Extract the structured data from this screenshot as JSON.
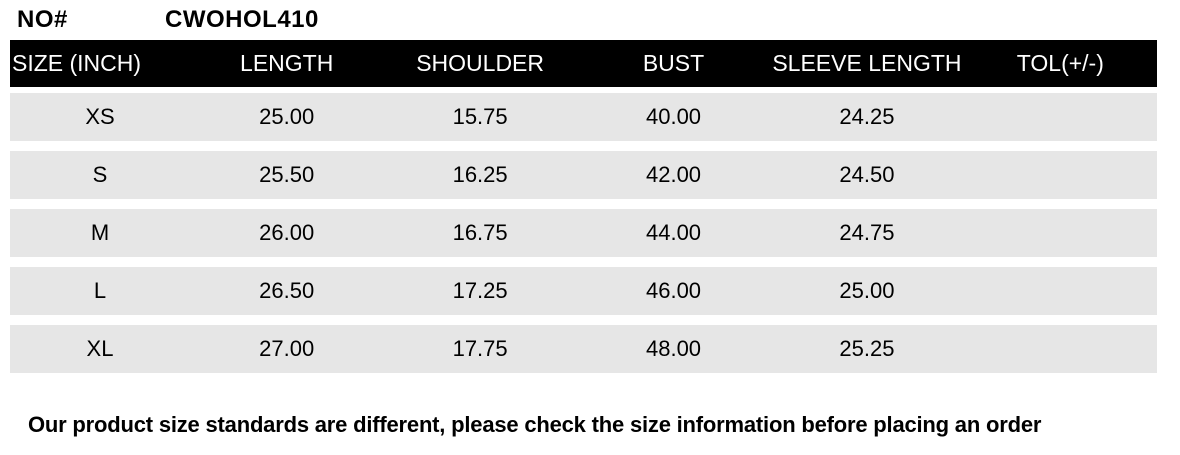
{
  "header": {
    "no_label": "NO#",
    "product_code": "CWOHOL410"
  },
  "table": {
    "columns": [
      "SIZE (INCH)",
      "LENGTH",
      "SHOULDER",
      "BUST",
      "SLEEVE LENGTH",
      "TOL(+/-)"
    ],
    "rows": [
      {
        "size": "XS",
        "length": "25.00",
        "shoulder": "15.75",
        "bust": "40.00",
        "sleeve_length": "24.25",
        "tol": ""
      },
      {
        "size": "S",
        "length": "25.50",
        "shoulder": "16.25",
        "bust": "42.00",
        "sleeve_length": "24.50",
        "tol": ""
      },
      {
        "size": "M",
        "length": "26.00",
        "shoulder": "16.75",
        "bust": "44.00",
        "sleeve_length": "24.75",
        "tol": ""
      },
      {
        "size": "L",
        "length": "26.50",
        "shoulder": "17.25",
        "bust": "46.00",
        "sleeve_length": "25.00",
        "tol": ""
      },
      {
        "size": "XL",
        "length": "27.00",
        "shoulder": "17.75",
        "bust": "48.00",
        "sleeve_length": "25.25",
        "tol": ""
      }
    ]
  },
  "note": "Our product size standards are different, please check the size information before placing an order",
  "colors": {
    "page_bg": "#ffffff",
    "header_bg": "#000000",
    "header_text": "#ffffff",
    "row_bg": "#e6e6e6",
    "text": "#000000"
  }
}
